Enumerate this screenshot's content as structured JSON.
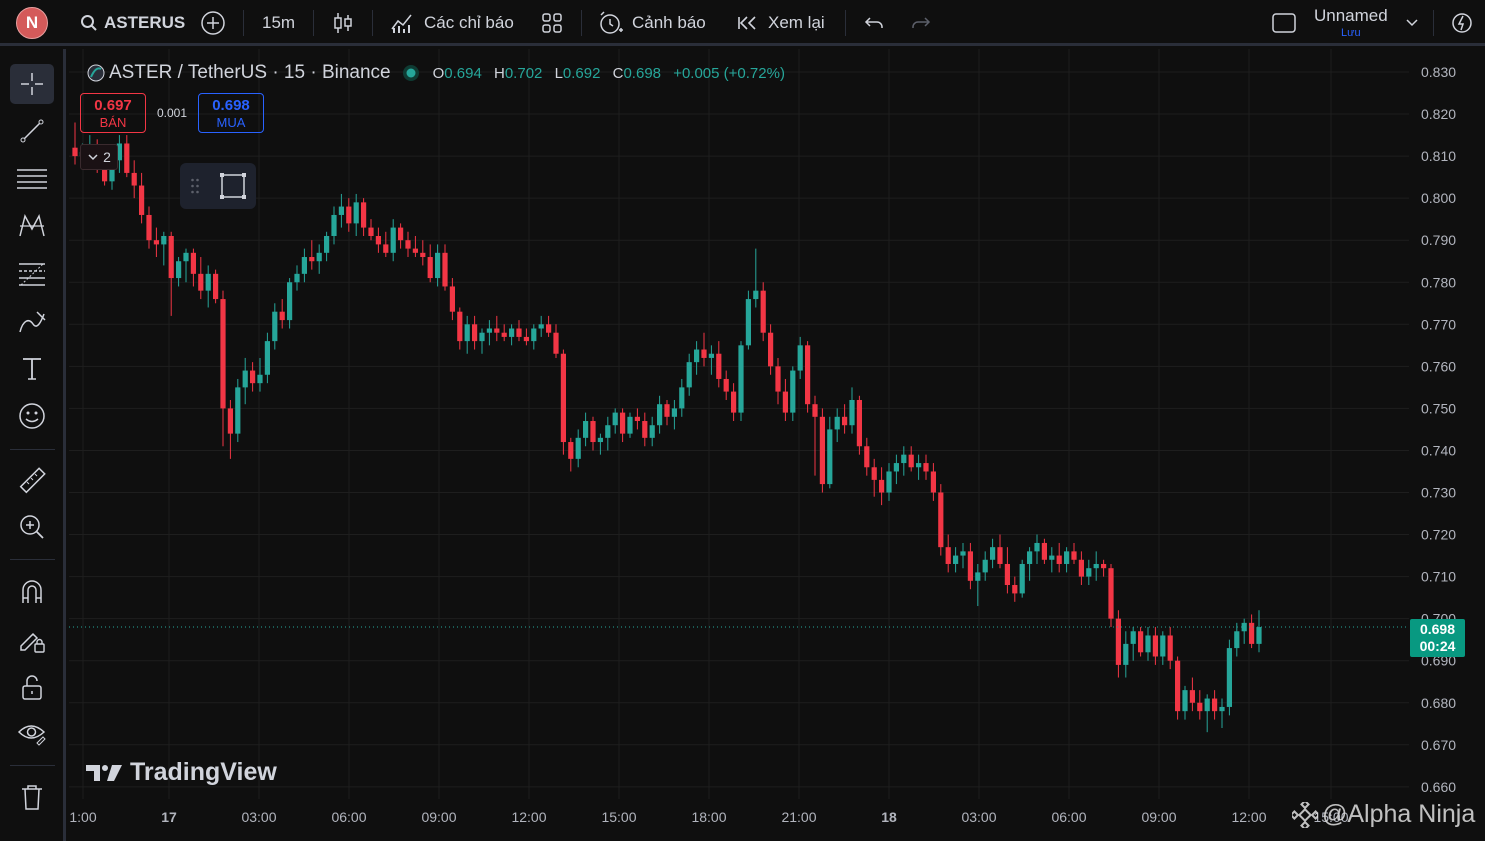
{
  "header": {
    "avatar_letter": "N",
    "symbol": "ASTERUS",
    "interval": "15m",
    "indicators_label": "Các chỉ báo",
    "alerts_label": "Cảnh báo",
    "replay_label": "Xem lại",
    "layout_name": "Unnamed",
    "save_label": "Lưu"
  },
  "legend": {
    "title": "ASTER / TetherUS · 15 · Binance",
    "o_key": "O",
    "o_val": "0.694",
    "h_key": "H",
    "h_val": "0.702",
    "l_key": "L",
    "l_val": "0.692",
    "c_key": "C",
    "c_val": "0.698",
    "change": "+0.005 (+0.72%)"
  },
  "trade": {
    "sell_price": "0.697",
    "sell_label": "BÁN",
    "spread": "0.001",
    "buy_price": "0.698",
    "buy_label": "MUA",
    "quantity": "2"
  },
  "price_tag": {
    "price": "0.698",
    "countdown": "00:24"
  },
  "branding": {
    "logo_text": "TradingView",
    "watermark": "@Alpha Ninja"
  },
  "colors": {
    "up": "#26a69a",
    "down": "#f23645",
    "background": "#0f0f0f",
    "grid": "#1e1e1e",
    "accent": "#2962ff"
  },
  "chart_data": {
    "type": "candlestick",
    "title": "ASTER / TetherUS · 15 · Binance",
    "xlabel": "",
    "ylabel": "",
    "ylim": [
      0.655,
      0.834
    ],
    "y_ticks": [
      "0.830",
      "0.820",
      "0.810",
      "0.800",
      "0.790",
      "0.780",
      "0.770",
      "0.760",
      "0.750",
      "0.740",
      "0.730",
      "0.720",
      "0.710",
      "0.700",
      "0.690",
      "0.680",
      "0.670",
      "0.660"
    ],
    "x_ticks": [
      "1:00",
      "17",
      "03:00",
      "06:00",
      "09:00",
      "12:00",
      "15:00",
      "18:00",
      "21:00",
      "18",
      "03:00",
      "06:00",
      "09:00",
      "12:00",
      "15:00"
    ],
    "grid": true,
    "last_price": 0.698,
    "candles_ohlc": [
      [
        0.812,
        0.818,
        0.808,
        0.81
      ],
      [
        0.81,
        0.813,
        0.807,
        0.811
      ],
      [
        0.811,
        0.815,
        0.809,
        0.812
      ],
      [
        0.812,
        0.814,
        0.806,
        0.807
      ],
      [
        0.807,
        0.81,
        0.803,
        0.804
      ],
      [
        0.804,
        0.812,
        0.802,
        0.809
      ],
      [
        0.809,
        0.815,
        0.806,
        0.813
      ],
      [
        0.813,
        0.815,
        0.805,
        0.806
      ],
      [
        0.806,
        0.809,
        0.8,
        0.803
      ],
      [
        0.803,
        0.806,
        0.794,
        0.796
      ],
      [
        0.796,
        0.798,
        0.788,
        0.79
      ],
      [
        0.79,
        0.793,
        0.786,
        0.789
      ],
      [
        0.789,
        0.792,
        0.784,
        0.791
      ],
      [
        0.791,
        0.792,
        0.772,
        0.781
      ],
      [
        0.781,
        0.786,
        0.779,
        0.785
      ],
      [
        0.785,
        0.788,
        0.78,
        0.787
      ],
      [
        0.787,
        0.788,
        0.779,
        0.782
      ],
      [
        0.782,
        0.786,
        0.776,
        0.778
      ],
      [
        0.778,
        0.784,
        0.774,
        0.782
      ],
      [
        0.782,
        0.783,
        0.775,
        0.776
      ],
      [
        0.776,
        0.778,
        0.741,
        0.75
      ],
      [
        0.75,
        0.752,
        0.738,
        0.744
      ],
      [
        0.744,
        0.757,
        0.742,
        0.755
      ],
      [
        0.755,
        0.762,
        0.751,
        0.759
      ],
      [
        0.759,
        0.761,
        0.754,
        0.756
      ],
      [
        0.756,
        0.762,
        0.754,
        0.758
      ],
      [
        0.758,
        0.768,
        0.756,
        0.766
      ],
      [
        0.766,
        0.775,
        0.764,
        0.773
      ],
      [
        0.773,
        0.776,
        0.769,
        0.771
      ],
      [
        0.771,
        0.781,
        0.769,
        0.78
      ],
      [
        0.78,
        0.784,
        0.778,
        0.782
      ],
      [
        0.782,
        0.788,
        0.78,
        0.786
      ],
      [
        0.786,
        0.79,
        0.783,
        0.785
      ],
      [
        0.785,
        0.789,
        0.782,
        0.787
      ],
      [
        0.787,
        0.792,
        0.785,
        0.791
      ],
      [
        0.791,
        0.798,
        0.789,
        0.796
      ],
      [
        0.796,
        0.801,
        0.793,
        0.798
      ],
      [
        0.798,
        0.8,
        0.792,
        0.794
      ],
      [
        0.794,
        0.801,
        0.791,
        0.799
      ],
      [
        0.799,
        0.8,
        0.791,
        0.793
      ],
      [
        0.793,
        0.795,
        0.79,
        0.791
      ],
      [
        0.791,
        0.793,
        0.787,
        0.789
      ],
      [
        0.789,
        0.792,
        0.786,
        0.787
      ],
      [
        0.787,
        0.795,
        0.785,
        0.793
      ],
      [
        0.793,
        0.794,
        0.788,
        0.79
      ],
      [
        0.79,
        0.792,
        0.786,
        0.788
      ],
      [
        0.788,
        0.791,
        0.786,
        0.787
      ],
      [
        0.787,
        0.79,
        0.784,
        0.786
      ],
      [
        0.786,
        0.789,
        0.78,
        0.781
      ],
      [
        0.781,
        0.789,
        0.779,
        0.787
      ],
      [
        0.787,
        0.789,
        0.778,
        0.779
      ],
      [
        0.779,
        0.781,
        0.771,
        0.773
      ],
      [
        0.773,
        0.774,
        0.764,
        0.766
      ],
      [
        0.766,
        0.772,
        0.763,
        0.77
      ],
      [
        0.77,
        0.772,
        0.764,
        0.766
      ],
      [
        0.766,
        0.769,
        0.763,
        0.768
      ],
      [
        0.768,
        0.771,
        0.765,
        0.769
      ],
      [
        0.769,
        0.772,
        0.766,
        0.768
      ],
      [
        0.768,
        0.77,
        0.766,
        0.767
      ],
      [
        0.767,
        0.77,
        0.765,
        0.769
      ],
      [
        0.769,
        0.771,
        0.766,
        0.767
      ],
      [
        0.767,
        0.769,
        0.765,
        0.766
      ],
      [
        0.766,
        0.77,
        0.764,
        0.769
      ],
      [
        0.769,
        0.772,
        0.767,
        0.77
      ],
      [
        0.77,
        0.772,
        0.767,
        0.768
      ],
      [
        0.768,
        0.77,
        0.762,
        0.763
      ],
      [
        0.763,
        0.764,
        0.739,
        0.742
      ],
      [
        0.742,
        0.743,
        0.735,
        0.738
      ],
      [
        0.738,
        0.745,
        0.736,
        0.743
      ],
      [
        0.743,
        0.749,
        0.741,
        0.747
      ],
      [
        0.747,
        0.748,
        0.74,
        0.742
      ],
      [
        0.742,
        0.744,
        0.739,
        0.743
      ],
      [
        0.743,
        0.748,
        0.74,
        0.746
      ],
      [
        0.746,
        0.75,
        0.744,
        0.749
      ],
      [
        0.749,
        0.75,
        0.742,
        0.744
      ],
      [
        0.744,
        0.749,
        0.743,
        0.748
      ],
      [
        0.748,
        0.75,
        0.745,
        0.747
      ],
      [
        0.747,
        0.749,
        0.741,
        0.743
      ],
      [
        0.743,
        0.748,
        0.741,
        0.746
      ],
      [
        0.746,
        0.753,
        0.744,
        0.751
      ],
      [
        0.751,
        0.752,
        0.746,
        0.748
      ],
      [
        0.748,
        0.752,
        0.745,
        0.75
      ],
      [
        0.75,
        0.757,
        0.748,
        0.755
      ],
      [
        0.755,
        0.763,
        0.753,
        0.761
      ],
      [
        0.761,
        0.766,
        0.758,
        0.764
      ],
      [
        0.764,
        0.768,
        0.76,
        0.762
      ],
      [
        0.762,
        0.765,
        0.758,
        0.763
      ],
      [
        0.763,
        0.766,
        0.755,
        0.757
      ],
      [
        0.757,
        0.759,
        0.752,
        0.754
      ],
      [
        0.754,
        0.756,
        0.747,
        0.749
      ],
      [
        0.749,
        0.766,
        0.747,
        0.765
      ],
      [
        0.765,
        0.778,
        0.764,
        0.776
      ],
      [
        0.776,
        0.788,
        0.774,
        0.778
      ],
      [
        0.778,
        0.78,
        0.766,
        0.768
      ],
      [
        0.768,
        0.77,
        0.758,
        0.76
      ],
      [
        0.76,
        0.762,
        0.751,
        0.754
      ],
      [
        0.754,
        0.757,
        0.747,
        0.749
      ],
      [
        0.749,
        0.76,
        0.747,
        0.759
      ],
      [
        0.759,
        0.767,
        0.757,
        0.765
      ],
      [
        0.765,
        0.766,
        0.749,
        0.751
      ],
      [
        0.751,
        0.753,
        0.734,
        0.748
      ],
      [
        0.748,
        0.75,
        0.73,
        0.732
      ],
      [
        0.732,
        0.748,
        0.731,
        0.745
      ],
      [
        0.745,
        0.75,
        0.742,
        0.748
      ],
      [
        0.748,
        0.751,
        0.744,
        0.746
      ],
      [
        0.746,
        0.755,
        0.744,
        0.752
      ],
      [
        0.752,
        0.753,
        0.739,
        0.741
      ],
      [
        0.741,
        0.743,
        0.734,
        0.736
      ],
      [
        0.736,
        0.738,
        0.729,
        0.733
      ],
      [
        0.733,
        0.736,
        0.727,
        0.73
      ],
      [
        0.73,
        0.737,
        0.728,
        0.735
      ],
      [
        0.735,
        0.739,
        0.732,
        0.737
      ],
      [
        0.737,
        0.741,
        0.734,
        0.739
      ],
      [
        0.739,
        0.741,
        0.735,
        0.736
      ],
      [
        0.736,
        0.739,
        0.733,
        0.737
      ],
      [
        0.737,
        0.739,
        0.733,
        0.735
      ],
      [
        0.735,
        0.737,
        0.728,
        0.73
      ],
      [
        0.73,
        0.732,
        0.715,
        0.717
      ],
      [
        0.717,
        0.72,
        0.711,
        0.713
      ],
      [
        0.713,
        0.717,
        0.711,
        0.715
      ],
      [
        0.715,
        0.718,
        0.712,
        0.716
      ],
      [
        0.716,
        0.718,
        0.707,
        0.709
      ],
      [
        0.709,
        0.713,
        0.703,
        0.711
      ],
      [
        0.711,
        0.716,
        0.709,
        0.714
      ],
      [
        0.714,
        0.719,
        0.712,
        0.717
      ],
      [
        0.717,
        0.72,
        0.712,
        0.713
      ],
      [
        0.713,
        0.717,
        0.706,
        0.708
      ],
      [
        0.708,
        0.71,
        0.704,
        0.706
      ],
      [
        0.706,
        0.714,
        0.705,
        0.713
      ],
      [
        0.713,
        0.717,
        0.709,
        0.716
      ],
      [
        0.716,
        0.72,
        0.713,
        0.718
      ],
      [
        0.718,
        0.719,
        0.713,
        0.714
      ],
      [
        0.714,
        0.717,
        0.711,
        0.715
      ],
      [
        0.715,
        0.718,
        0.711,
        0.713
      ],
      [
        0.713,
        0.717,
        0.711,
        0.716
      ],
      [
        0.716,
        0.718,
        0.713,
        0.714
      ],
      [
        0.714,
        0.716,
        0.708,
        0.71
      ],
      [
        0.71,
        0.714,
        0.708,
        0.712
      ],
      [
        0.712,
        0.716,
        0.709,
        0.713
      ],
      [
        0.713,
        0.714,
        0.71,
        0.712
      ],
      [
        0.712,
        0.713,
        0.698,
        0.7
      ],
      [
        0.7,
        0.702,
        0.686,
        0.689
      ],
      [
        0.689,
        0.697,
        0.686,
        0.694
      ],
      [
        0.694,
        0.698,
        0.69,
        0.697
      ],
      [
        0.697,
        0.698,
        0.691,
        0.692
      ],
      [
        0.692,
        0.698,
        0.69,
        0.696
      ],
      [
        0.696,
        0.698,
        0.689,
        0.691
      ],
      [
        0.691,
        0.697,
        0.689,
        0.696
      ],
      [
        0.696,
        0.698,
        0.688,
        0.69
      ],
      [
        0.69,
        0.691,
        0.676,
        0.678
      ],
      [
        0.678,
        0.684,
        0.676,
        0.683
      ],
      [
        0.683,
        0.686,
        0.678,
        0.68
      ],
      [
        0.68,
        0.683,
        0.676,
        0.678
      ],
      [
        0.678,
        0.682,
        0.673,
        0.681
      ],
      [
        0.681,
        0.683,
        0.676,
        0.678
      ],
      [
        0.678,
        0.681,
        0.674,
        0.679
      ],
      [
        0.679,
        0.695,
        0.677,
        0.693
      ],
      [
        0.693,
        0.699,
        0.691,
        0.697
      ],
      [
        0.697,
        0.7,
        0.694,
        0.699
      ],
      [
        0.699,
        0.701,
        0.693,
        0.694
      ],
      [
        0.694,
        0.702,
        0.692,
        0.698
      ]
    ]
  }
}
